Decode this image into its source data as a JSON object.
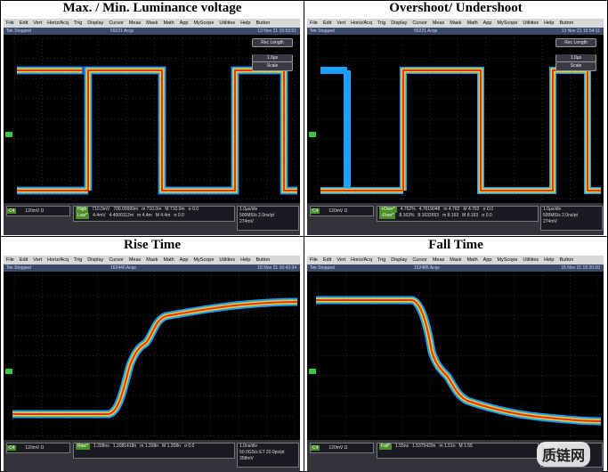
{
  "menu": [
    "File",
    "Edit",
    "Vert",
    "Horiz/Acq",
    "Trig",
    "Display",
    "Cursor",
    "Meas",
    "Mask",
    "Math",
    "App",
    "MyScope",
    "Utilities",
    "Help",
    "Button"
  ],
  "status": "Tek Stopped",
  "watermark": "质链网",
  "panels": [
    {
      "title": "Max. / Min. Luminance voltage",
      "acqs": "59221 Acqs",
      "timestamp": "13 Nov 21 15:53:51",
      "channel": "C4",
      "scale": "120mV Ω",
      "buttons": [
        "Rec Length",
        "Scale",
        "1.0µs"
      ],
      "measurements": [
        [
          "High",
          "710.0mV",
          "709.99999m",
          "m 710.0m",
          "M 710.0m",
          "σ 0.0"
        ],
        [
          "Low*",
          "4.4mV",
          "4.4000112m",
          "m 4.4m",
          "M 4.4m",
          "σ 0.0"
        ]
      ],
      "horizontal": [
        "1.0µs/div",
        "500MS/s 2.0ns/pt",
        "274mV"
      ]
    },
    {
      "title": "Overshoot/ Undershoot",
      "acqs": "55221 Acqs",
      "timestamp": "13 Nov 21 15:54:11",
      "channel": "C4",
      "scale": "120mV Ω",
      "buttons": [
        "Rec Length",
        "Scale",
        "1.0µs"
      ],
      "measurements": [
        [
          "+Over*",
          "4.762%",
          "4.7619048",
          "m 4.762",
          "M 4.762",
          "σ 0.0"
        ],
        [
          "-Over*",
          "8.163%",
          "8.1632653",
          "m 8.163",
          "M 8.163",
          "σ 0.0"
        ]
      ],
      "horizontal": [
        "1.0µs/div",
        "500MS/s 2.0ns/pt",
        "274mV"
      ]
    },
    {
      "title": "Rise Time",
      "acqs": "162440 Acqs",
      "timestamp": "15 Nov 21 16:43:34",
      "channel": "C4",
      "scale": "120mV Ω",
      "buttons": [],
      "measurements": [
        [
          "Rise*",
          "1.208ns",
          "1.2081418n",
          "m 1.208n",
          "M 1.208n",
          "σ 0.0"
        ]
      ],
      "horizontal": [
        "1.0ns/div",
        "50.0GS/s ET 20.0ps/pt",
        "358mV"
      ]
    },
    {
      "title": "Fall Time",
      "acqs": "152485 Acqs",
      "timestamp": "15 Nov 21 19:20:20",
      "channel": "C4",
      "scale": "120mV Ω",
      "buttons": [],
      "measurements": [
        [
          "Fall*",
          "1.55ns",
          "1.5375429n",
          "m 1.51n",
          "M 1.55"
        ]
      ],
      "horizontal": [
        "358mV"
      ]
    }
  ]
}
